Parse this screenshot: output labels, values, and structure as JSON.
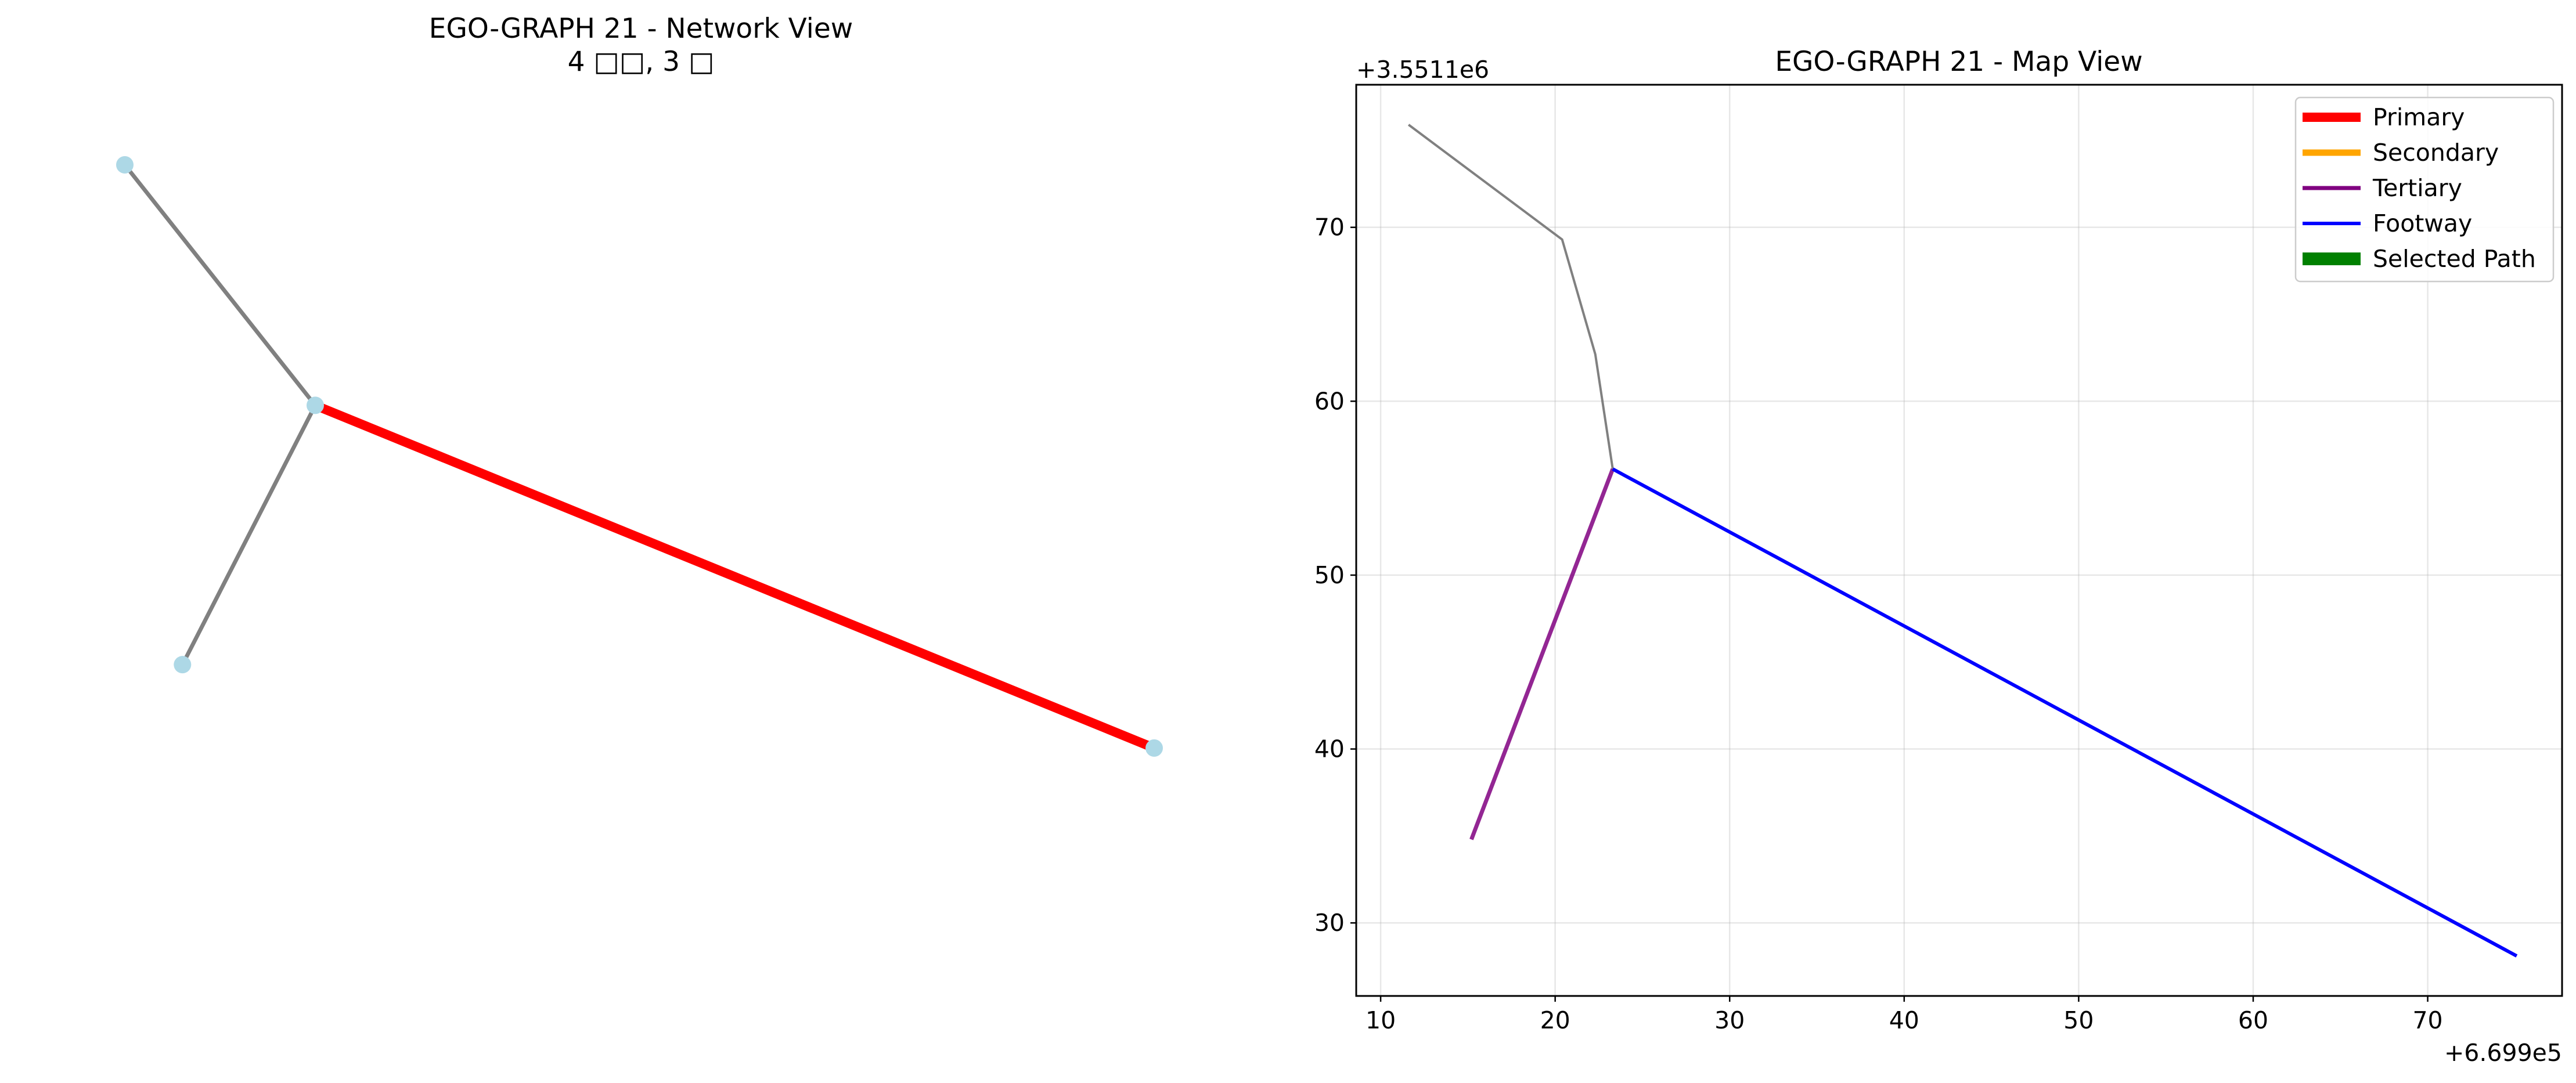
{
  "chart_data": [
    {
      "type": "network",
      "title": "EGO-GRAPH 21 - Network View",
      "subtitle": "4 □□, 3 □",
      "node_color": "#add8e6",
      "nodes": [
        {
          "id": "a",
          "x": 0.0,
          "y": 1.0
        },
        {
          "id": "b",
          "x": 0.185,
          "y": 0.68
        },
        {
          "id": "c",
          "x": 0.056,
          "y": 0.335
        },
        {
          "id": "d",
          "x": 1.0,
          "y": 0.224
        }
      ],
      "edges": [
        {
          "from": "a",
          "to": "b",
          "color": "#808080",
          "kind": "normal"
        },
        {
          "from": "b",
          "to": "c",
          "color": "#808080",
          "kind": "normal"
        },
        {
          "from": "b",
          "to": "d",
          "color": "#ff0000",
          "kind": "primary"
        }
      ]
    },
    {
      "type": "line",
      "title": "EGO-GRAPH 21 - Map View",
      "x_offset_label": "+6.699e5",
      "y_offset_label": "+3.5511e6",
      "xlim": [
        8.6,
        77.7
      ],
      "ylim": [
        25.8,
        78.2
      ],
      "xticks": [
        10,
        20,
        30,
        40,
        50,
        60,
        70
      ],
      "yticks": [
        30,
        40,
        50,
        60,
        70
      ],
      "grid": true,
      "legend_position": "top-right",
      "legend": [
        {
          "label": "Primary",
          "color": "#ff0000",
          "kind": "primary"
        },
        {
          "label": "Secondary",
          "color": "#ffa500",
          "kind": "secondary"
        },
        {
          "label": "Tertiary",
          "color": "#800080",
          "kind": "tertiary"
        },
        {
          "label": "Footway",
          "color": "#0000ff",
          "kind": "footway"
        },
        {
          "label": "Selected Path",
          "color": "#008000",
          "kind": "selected"
        }
      ],
      "series": [
        {
          "color": "#808080",
          "kind": "other",
          "x": [
            11.6,
            20.4,
            22.3,
            23.3
          ],
          "y": [
            75.9,
            69.3,
            62.7,
            56.1
          ]
        },
        {
          "color": "#800080",
          "kind": "tertiary",
          "x": [
            15.2,
            23.3
          ],
          "y": [
            34.8,
            56.1
          ]
        },
        {
          "color": "#0000ff",
          "kind": "footway",
          "x": [
            23.3,
            75.1
          ],
          "y": [
            56.1,
            28.1
          ]
        }
      ]
    }
  ]
}
